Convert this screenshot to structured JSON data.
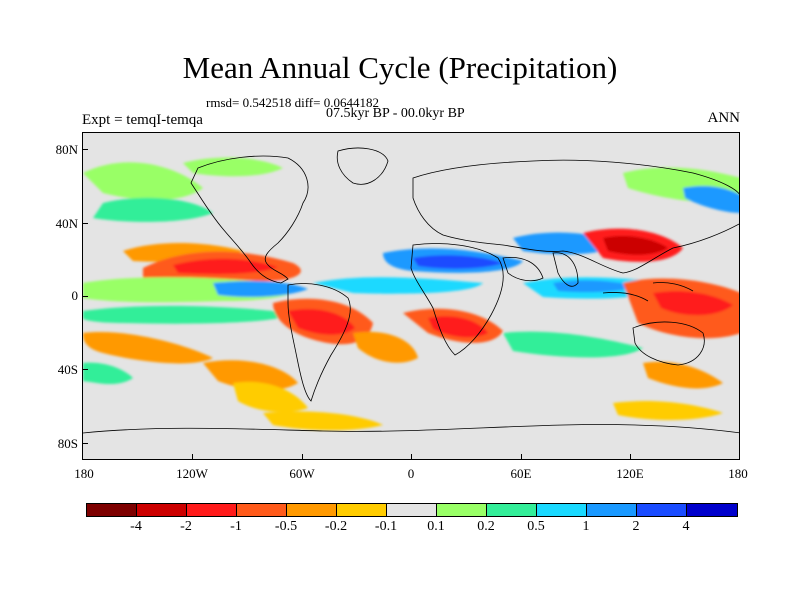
{
  "title": "Mean Annual Cycle (Precipitation)",
  "stats": "rmsd= 0.542518 diff= 0.0644182",
  "period": "07.5kyr BP - 00.0kyr BP",
  "experiment": "Expt = temqI-temqa",
  "season": "ANN",
  "axes": {
    "lat_ticks": [
      "80N",
      "40N",
      "0",
      "40S",
      "80S"
    ],
    "lon_ticks": [
      "180",
      "120W",
      "60W",
      "0",
      "60E",
      "120E",
      "180"
    ]
  },
  "colorbar": {
    "colors": [
      "#7d0000",
      "#cc0000",
      "#ff1a1a",
      "#ff5a1a",
      "#ff9900",
      "#ffcc00",
      "#e4e4e4",
      "#99ff66",
      "#33ee99",
      "#1ad9ff",
      "#1a99ff",
      "#1a4cff",
      "#0000cc"
    ],
    "labels": [
      "-4",
      "-2",
      "-1",
      "-0.5",
      "-0.2",
      "-0.1",
      "0.1",
      "0.2",
      "0.5",
      "1",
      "2",
      "4"
    ]
  }
}
